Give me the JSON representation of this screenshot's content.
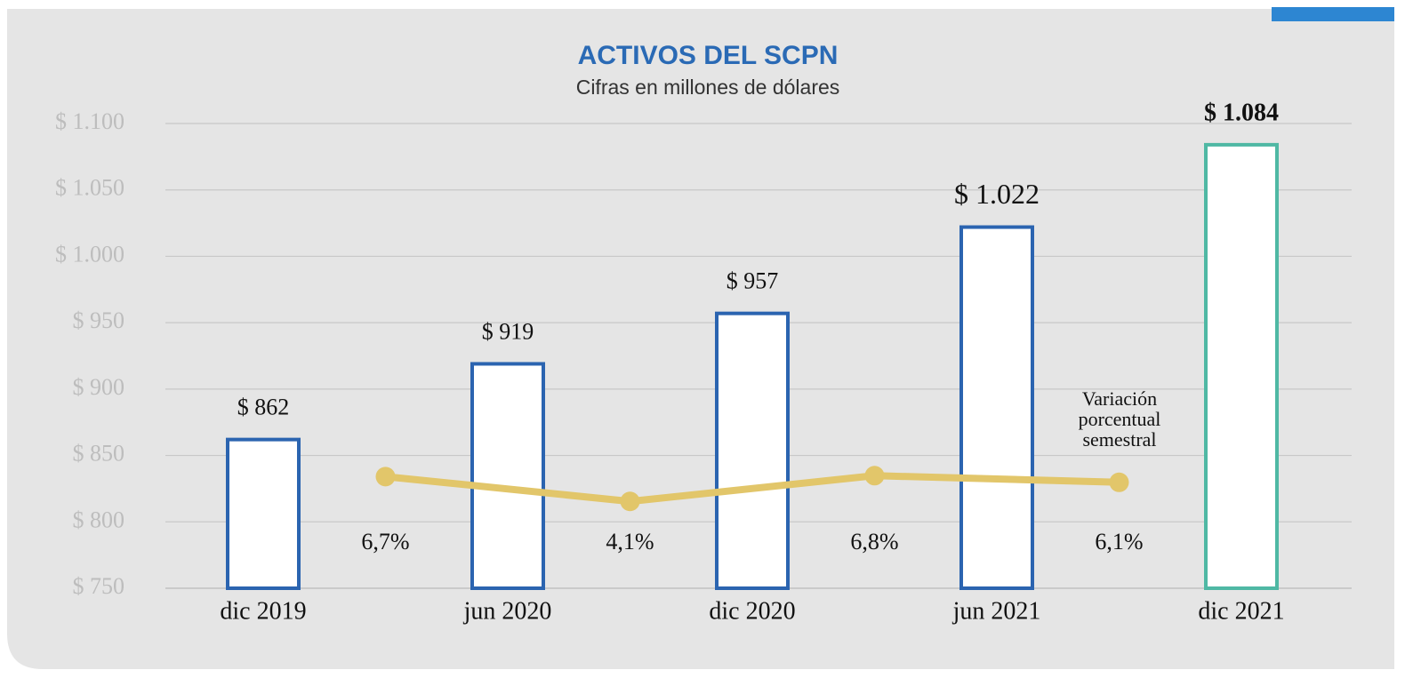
{
  "chart_data": {
    "type": "bar",
    "title": "ACTIVOS DEL SCPN",
    "subtitle": "Cifras en millones de dólares",
    "categories": [
      "dic 2019",
      "jun 2020",
      "dic 2020",
      "jun 2021",
      "dic 2021"
    ],
    "series": [
      {
        "type": "bar",
        "values": [
          862,
          919,
          957,
          1022,
          1084
        ],
        "value_labels": [
          "$ 862",
          "$ 919",
          "$ 957",
          "$ 1.022",
          "$ 1.084"
        ],
        "colors": [
          "#2b64b0",
          "#2b64b0",
          "#2b64b0",
          "#2b64b0",
          "#4fb8a4"
        ]
      },
      {
        "type": "line",
        "axis": "y2",
        "color": "#e2c66a",
        "values": [
          6.7,
          4.1,
          6.8,
          6.1,
          null
        ],
        "value_labels": [
          "6,7%",
          "4,1%",
          "6,8%",
          "6,1%",
          null
        ]
      }
    ],
    "annotation": [
      "Variación",
      "porcentual",
      "semestral"
    ],
    "ylim": [
      750,
      1100
    ],
    "yticks": [
      {
        "value": 750,
        "label": "$ 750"
      },
      {
        "value": 800,
        "label": "$ 800"
      },
      {
        "value": 850,
        "label": "$ 850"
      },
      {
        "value": 900,
        "label": "$ 900"
      },
      {
        "value": 950,
        "label": "$ 950"
      },
      {
        "value": 1000,
        "label": "$ 1.000"
      },
      {
        "value": 1050,
        "label": "$ 1.050"
      },
      {
        "value": 1100,
        "label": "$ 1.100"
      }
    ],
    "y2lim": [
      -5,
      43.7
    ],
    "grid": true
  }
}
